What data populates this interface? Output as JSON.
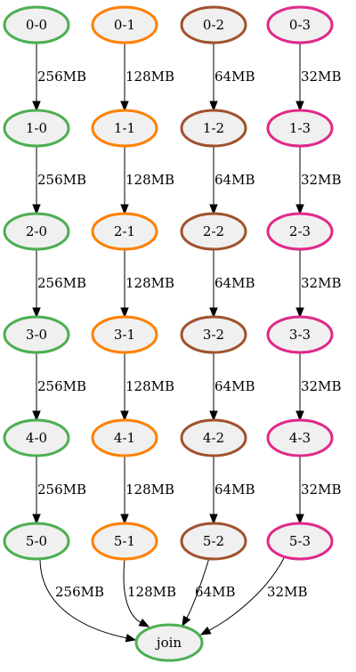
{
  "graph": {
    "columns": [
      {
        "color": "#4caf50",
        "edge_label": "256MB",
        "nodes": [
          "0-0",
          "1-0",
          "2-0",
          "3-0",
          "4-0",
          "5-0"
        ]
      },
      {
        "color": "#ff8000",
        "edge_label": "128MB",
        "nodes": [
          "0-1",
          "1-1",
          "2-1",
          "3-1",
          "4-1",
          "5-1"
        ]
      },
      {
        "color": "#a0522d",
        "edge_label": "64MB",
        "nodes": [
          "0-2",
          "1-2",
          "2-2",
          "3-2",
          "4-2",
          "5-2"
        ]
      },
      {
        "color": "#e0298a",
        "edge_label": "32MB",
        "nodes": [
          "0-3",
          "1-3",
          "2-3",
          "3-3",
          "4-3",
          "5-3"
        ]
      }
    ],
    "join": {
      "label": "join",
      "color": "#4caf50",
      "incoming_labels": [
        "256MB",
        "128MB",
        "64MB",
        "32MB"
      ]
    }
  }
}
